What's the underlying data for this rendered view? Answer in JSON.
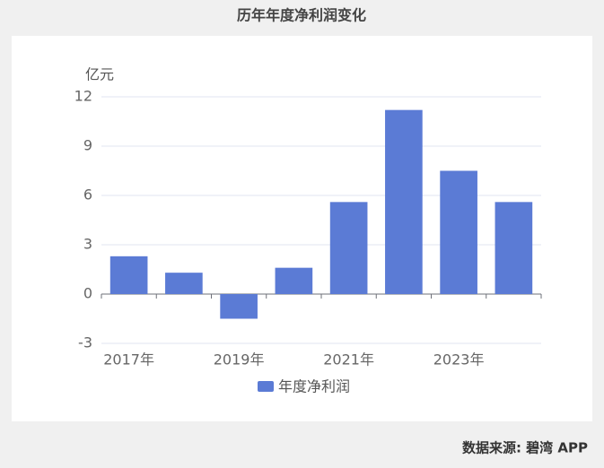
{
  "chart_data": {
    "type": "bar",
    "title": "历年年度净利润变化",
    "y_label": "亿元",
    "categories": [
      "2017年",
      null,
      "2019年",
      null,
      "2021年",
      null,
      "2023年",
      null
    ],
    "series": [
      {
        "name": "年度净利润",
        "color": "#5b7bd5",
        "values": [
          2.3,
          1.3,
          -1.5,
          1.6,
          5.6,
          11.2,
          7.5,
          5.6
        ]
      }
    ],
    "ylim": [
      -3,
      12
    ],
    "yticks": [
      -3,
      0,
      3,
      6,
      9,
      12
    ],
    "grid": true,
    "legend": "bottom",
    "source": "数据来源: 碧湾 APP"
  }
}
